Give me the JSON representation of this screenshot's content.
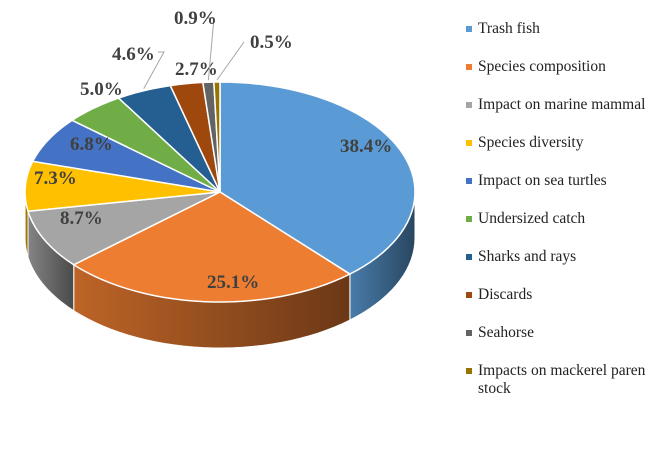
{
  "chart_data": {
    "type": "pie",
    "style": "3d",
    "title": "",
    "categories": [
      "Trash fish",
      "Species composition",
      "Impact on marine mammal",
      "Species diversity",
      "Impact on sea turtles",
      "Undersized catch",
      "Sharks and rays",
      "Discards",
      "Seahorse",
      "Impacts on mackerel paren stock"
    ],
    "values": [
      38.4,
      25.1,
      8.7,
      7.3,
      6.8,
      5.0,
      4.6,
      2.7,
      0.9,
      0.5
    ],
    "labels": [
      "38.4%",
      "25.1%",
      "8.7%",
      "7.3%",
      "6.8%",
      "5.0%",
      "4.6%",
      "2.7%",
      "0.9%",
      "0.5%"
    ],
    "colors": [
      "#5B9BD5",
      "#ED7D31",
      "#A5A5A5",
      "#FFC000",
      "#4472C4",
      "#70AD47",
      "#255E91",
      "#9E480E",
      "#636363",
      "#997300"
    ],
    "legend_position": "right"
  },
  "legend": {
    "items": [
      {
        "label": "Trash fish"
      },
      {
        "label": "Species composition"
      },
      {
        "label": "Impact on marine mammal"
      },
      {
        "label": "Species diversity"
      },
      {
        "label": "Impact on sea turtles"
      },
      {
        "label": "Undersized catch"
      },
      {
        "label": "Sharks and rays"
      },
      {
        "label": "Discards"
      },
      {
        "label": "Seahorse"
      },
      {
        "label": "Impacts on mackerel paren stock"
      }
    ]
  }
}
